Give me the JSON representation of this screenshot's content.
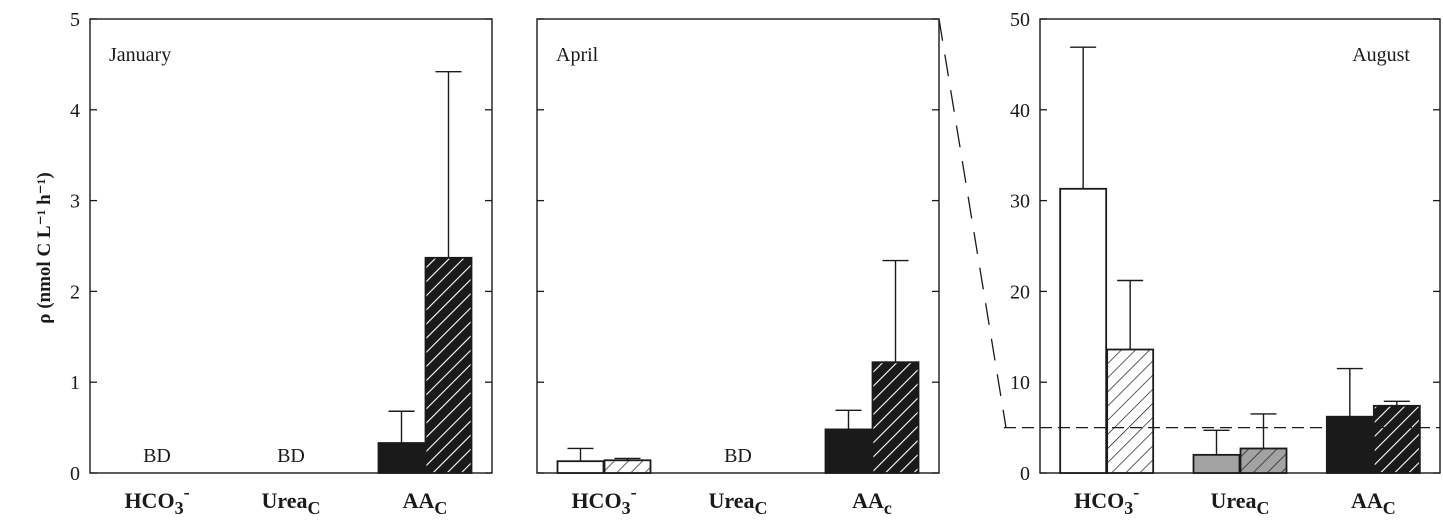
{
  "figure": {
    "ylabel": "ρ (nmol C L⁻¹ h⁻¹)"
  },
  "chart_data": [
    {
      "type": "bar",
      "title": "January",
      "categories": [
        "HCO3-",
        "UreaC",
        "AAC"
      ],
      "ylim": [
        0,
        5
      ],
      "yticks": [
        0,
        1,
        2,
        3,
        4,
        5
      ],
      "series": [
        {
          "style": "open",
          "values": [
            null,
            null,
            null
          ],
          "errors": [
            null,
            null,
            null
          ]
        },
        {
          "style": "hatched",
          "values": [
            null,
            null,
            null
          ],
          "errors": [
            null,
            null,
            null
          ]
        },
        {
          "style": "filled",
          "values": [
            null,
            null,
            0.33
          ],
          "errors": [
            null,
            null,
            0.35
          ]
        },
        {
          "style": "filled-hatched",
          "values": [
            null,
            null,
            2.37
          ],
          "errors": [
            null,
            null,
            2.05
          ]
        }
      ],
      "annotations": [
        {
          "category": "HCO3-",
          "text": "BD"
        },
        {
          "category": "UreaC",
          "text": "BD"
        }
      ]
    },
    {
      "type": "bar",
      "title": "April",
      "categories": [
        "HCO3-",
        "UreaC",
        "AAC"
      ],
      "ylim": [
        0,
        5
      ],
      "yticks": [
        0,
        1,
        2,
        3,
        4,
        5
      ],
      "series": [
        {
          "style": "open",
          "values": [
            0.13,
            null,
            null
          ],
          "errors": [
            0.14,
            null,
            null
          ]
        },
        {
          "style": "hatched",
          "values": [
            0.14,
            null,
            null
          ],
          "errors": [
            0.02,
            null,
            null
          ]
        },
        {
          "style": "filled",
          "values": [
            null,
            null,
            0.48
          ],
          "errors": [
            null,
            null,
            0.21
          ]
        },
        {
          "style": "filled-hatched",
          "values": [
            null,
            null,
            1.22
          ],
          "errors": [
            null,
            null,
            1.12
          ]
        }
      ],
      "annotations": [
        {
          "category": "UreaC",
          "text": "BD"
        }
      ]
    },
    {
      "type": "bar",
      "title": "August",
      "categories": [
        "HCO3-",
        "UreaC",
        "AAC"
      ],
      "ylim": [
        0,
        50
      ],
      "yticks": [
        0,
        10,
        20,
        30,
        40,
        50
      ],
      "series": [
        {
          "style": "open",
          "values": [
            31.3,
            null,
            null
          ],
          "errors": [
            15.6,
            null,
            null
          ]
        },
        {
          "style": "hatched",
          "values": [
            13.6,
            null,
            null
          ],
          "errors": [
            7.6,
            null,
            null
          ]
        },
        {
          "style": "gray",
          "values": [
            null,
            2.0,
            null
          ],
          "errors": [
            null,
            2.7,
            null
          ]
        },
        {
          "style": "gray-hatched",
          "values": [
            null,
            2.7,
            null
          ],
          "errors": [
            null,
            3.8,
            null
          ]
        },
        {
          "style": "filled",
          "values": [
            null,
            null,
            6.2
          ],
          "errors": [
            null,
            null,
            5.3
          ]
        },
        {
          "style": "filled-hatched",
          "values": [
            null,
            null,
            7.4
          ],
          "errors": [
            null,
            null,
            0.5
          ]
        }
      ],
      "reference_line": 5,
      "zoom_from": "April"
    }
  ],
  "xlabels": [
    {
      "base": "HCO",
      "sub": "3",
      "sup": "-"
    },
    {
      "base": "Urea",
      "sub": "C",
      "sup": ""
    },
    {
      "base": "AA",
      "sub": "C",
      "sup": ""
    }
  ],
  "xlabels_april_aa": {
    "base": "AA",
    "sub": "c"
  },
  "colors": {
    "ink": "#1a1a1a",
    "gray": "#a3a3a3",
    "white": "#ffffff"
  }
}
